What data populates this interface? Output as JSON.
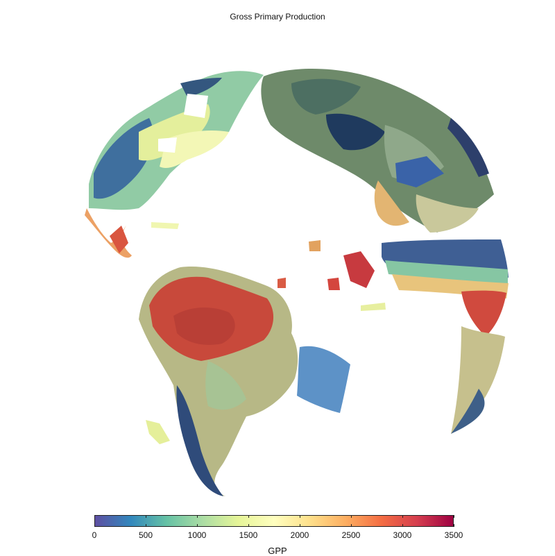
{
  "title": "Gross Primary Production",
  "colorbar": {
    "label": "GPP",
    "min": 0,
    "max": 3500,
    "ticks": [
      "0",
      "500",
      "1000",
      "1500",
      "2000",
      "2500",
      "3000",
      "3500"
    ],
    "colormap": [
      "#5e4fa2",
      "#3288bd",
      "#66c2a5",
      "#abdda4",
      "#e6f598",
      "#ffffbf",
      "#fee08b",
      "#fdae61",
      "#f46d43",
      "#d53e4f",
      "#9e0142"
    ]
  },
  "map": {
    "projection": "orthographic",
    "background": "#ffffff"
  }
}
